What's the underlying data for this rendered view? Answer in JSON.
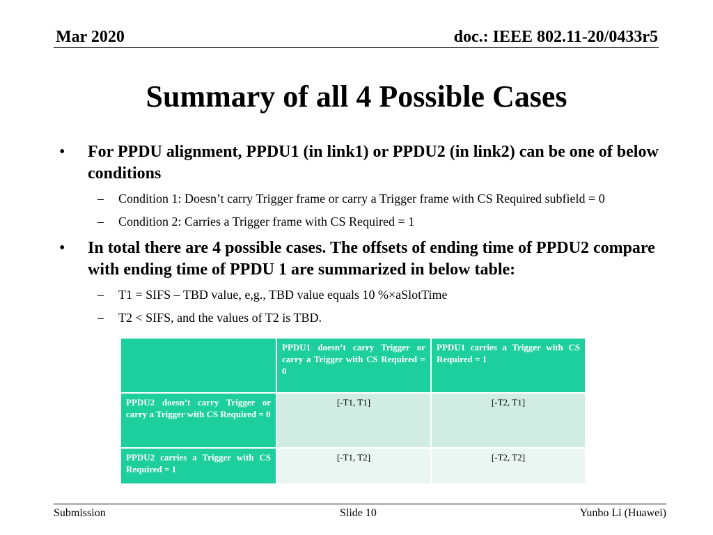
{
  "header": {
    "date": "Mar 2020",
    "doc_id": "doc.: IEEE 802.11-20/0433r5"
  },
  "title": "Summary of all 4 Possible Cases",
  "bullets": [
    {
      "text": "For PPDU alignment, PPDU1 (in link1) or PPDU2 (in link2) can be one of below conditions",
      "subs": [
        "Condition 1: Doesn’t carry Trigger frame or carry a Trigger frame with CS Required subfield = 0",
        "Condition 2: Carries a Trigger frame with CS Required = 1"
      ]
    },
    {
      "text": "In total there are 4 possible cases. The offsets of ending time of PPDU2 compare with ending time of PPDU 1 are summarized in below table:",
      "subs": [
        "T1 = SIFS – TBD value, e,g., TBD value equals 10 %×aSlotTime",
        "T2 < SIFS, and the values of T2 is TBD."
      ]
    }
  ],
  "bullet_glyph": "•",
  "sub_glyph": "–",
  "table": {
    "corner": "",
    "col_headers": [
      "PPDU1 doesn’t carry Trigger or carry a Trigger with CS Required = 0",
      "PPDU1 carries a Trigger with CS Required = 1"
    ],
    "rows": [
      {
        "header": "PPDU2 doesn’t carry Trigger or carry a Trigger with CS Required = 0",
        "cells": [
          "[-T1, T1]",
          "[-T2, T1]"
        ]
      },
      {
        "header": "PPDU2 carries a Trigger with CS Required = 1",
        "cells": [
          "[-T1, T2]",
          "[-T2, T2]"
        ]
      }
    ]
  },
  "footer": {
    "left": "Submission",
    "center": "Slide 10",
    "right": "Yunbo Li (Huawei)"
  },
  "colors": {
    "header_cell": "#1ccf9c",
    "row_odd": "#d1ede3",
    "row_even": "#e9f6f1"
  }
}
